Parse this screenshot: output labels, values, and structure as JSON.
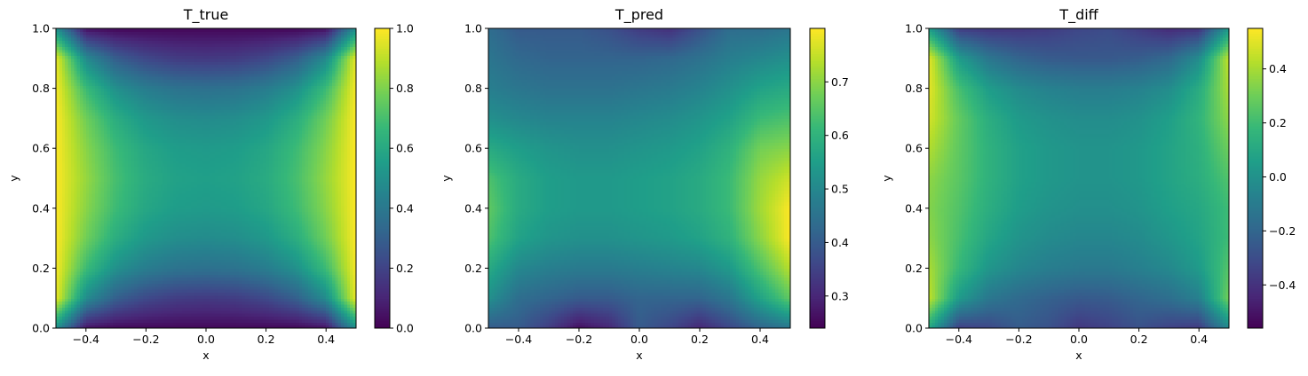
{
  "colormap": "viridis",
  "colormap_stops": [
    "#440154",
    "#482878",
    "#3e4989",
    "#31688e",
    "#26828e",
    "#1f9e89",
    "#35b779",
    "#6ece58",
    "#b5de2b",
    "#fde725"
  ],
  "chart_data": [
    {
      "type": "heatmap",
      "title": "T_true",
      "xlabel": "x",
      "ylabel": "y",
      "xlim": [
        -0.5,
        0.5
      ],
      "ylim": [
        0.0,
        1.0
      ],
      "xticks": [
        "−0.4",
        "−0.2",
        "0.0",
        "0.2",
        "0.4"
      ],
      "xtick_values": [
        -0.4,
        -0.2,
        0.0,
        0.2,
        0.4
      ],
      "yticks": [
        "0.0",
        "0.2",
        "0.4",
        "0.6",
        "0.8",
        "1.0"
      ],
      "ytick_values": [
        0.0,
        0.2,
        0.4,
        0.6,
        0.8,
        1.0
      ],
      "colorbar": {
        "range": [
          0.0,
          1.0
        ],
        "ticks": [
          "0.0",
          "0.2",
          "0.4",
          "0.6",
          "0.8",
          "1.0"
        ],
        "tick_values": [
          0.0,
          0.2,
          0.4,
          0.6,
          0.8,
          1.0
        ]
      },
      "grid_values": [
        [
          0.5,
          0.05,
          0.02,
          0.02,
          0.02,
          0.02,
          0.02,
          0.02,
          0.02,
          0.05,
          0.5
        ],
        [
          0.97,
          0.48,
          0.3,
          0.22,
          0.18,
          0.17,
          0.18,
          0.22,
          0.3,
          0.48,
          0.97
        ],
        [
          0.99,
          0.68,
          0.5,
          0.42,
          0.38,
          0.37,
          0.38,
          0.42,
          0.5,
          0.68,
          0.99
        ],
        [
          1.0,
          0.78,
          0.62,
          0.53,
          0.49,
          0.48,
          0.49,
          0.53,
          0.62,
          0.78,
          1.0
        ],
        [
          1.0,
          0.82,
          0.68,
          0.59,
          0.55,
          0.54,
          0.55,
          0.59,
          0.68,
          0.82,
          1.0
        ],
        [
          1.0,
          0.84,
          0.7,
          0.61,
          0.57,
          0.56,
          0.57,
          0.61,
          0.7,
          0.84,
          1.0
        ],
        [
          1.0,
          0.82,
          0.68,
          0.59,
          0.55,
          0.54,
          0.55,
          0.59,
          0.68,
          0.82,
          1.0
        ],
        [
          1.0,
          0.78,
          0.62,
          0.53,
          0.49,
          0.48,
          0.49,
          0.53,
          0.62,
          0.78,
          1.0
        ],
        [
          0.99,
          0.68,
          0.5,
          0.42,
          0.38,
          0.37,
          0.38,
          0.42,
          0.5,
          0.68,
          0.99
        ],
        [
          0.97,
          0.48,
          0.3,
          0.22,
          0.18,
          0.17,
          0.18,
          0.22,
          0.3,
          0.48,
          0.97
        ],
        [
          0.5,
          0.05,
          0.02,
          0.02,
          0.02,
          0.02,
          0.02,
          0.02,
          0.02,
          0.05,
          0.5
        ]
      ]
    },
    {
      "type": "heatmap",
      "title": "T_pred",
      "xlabel": "x",
      "ylabel": "y",
      "xlim": [
        -0.5,
        0.5
      ],
      "ylim": [
        0.0,
        1.0
      ],
      "xticks": [
        "−0.4",
        "−0.2",
        "0.0",
        "0.2",
        "0.4"
      ],
      "xtick_values": [
        -0.4,
        -0.2,
        0.0,
        0.2,
        0.4
      ],
      "yticks": [
        "0.0",
        "0.2",
        "0.4",
        "0.6",
        "0.8",
        "1.0"
      ],
      "ytick_values": [
        0.0,
        0.2,
        0.4,
        0.6,
        0.8,
        1.0
      ],
      "colorbar": {
        "range": [
          0.24,
          0.8
        ],
        "ticks": [
          "0.3",
          "0.4",
          "0.5",
          "0.6",
          "0.7"
        ],
        "tick_values": [
          0.3,
          0.4,
          0.5,
          0.6,
          0.7
        ]
      },
      "grid_values": [
        [
          0.4,
          0.4,
          0.34,
          0.26,
          0.3,
          0.4,
          0.36,
          0.3,
          0.36,
          0.42,
          0.46
        ],
        [
          0.52,
          0.44,
          0.42,
          0.4,
          0.4,
          0.42,
          0.42,
          0.42,
          0.46,
          0.56,
          0.66
        ],
        [
          0.58,
          0.5,
          0.48,
          0.47,
          0.47,
          0.48,
          0.49,
          0.5,
          0.54,
          0.64,
          0.74
        ],
        [
          0.64,
          0.56,
          0.53,
          0.52,
          0.52,
          0.53,
          0.54,
          0.56,
          0.6,
          0.7,
          0.8
        ],
        [
          0.66,
          0.58,
          0.55,
          0.54,
          0.54,
          0.55,
          0.56,
          0.58,
          0.62,
          0.72,
          0.8
        ],
        [
          0.64,
          0.58,
          0.55,
          0.54,
          0.54,
          0.55,
          0.56,
          0.58,
          0.62,
          0.71,
          0.76
        ],
        [
          0.58,
          0.55,
          0.53,
          0.52,
          0.52,
          0.53,
          0.54,
          0.56,
          0.6,
          0.68,
          0.7
        ],
        [
          0.52,
          0.5,
          0.49,
          0.49,
          0.49,
          0.5,
          0.51,
          0.53,
          0.56,
          0.62,
          0.64
        ],
        [
          0.48,
          0.46,
          0.45,
          0.45,
          0.45,
          0.46,
          0.47,
          0.49,
          0.52,
          0.56,
          0.58
        ],
        [
          0.46,
          0.43,
          0.42,
          0.42,
          0.42,
          0.42,
          0.43,
          0.45,
          0.48,
          0.5,
          0.52
        ],
        [
          0.44,
          0.4,
          0.4,
          0.4,
          0.38,
          0.34,
          0.32,
          0.38,
          0.44,
          0.44,
          0.46
        ]
      ]
    },
    {
      "type": "heatmap",
      "title": "T_diff",
      "xlabel": "x",
      "ylabel": "y",
      "xlim": [
        -0.5,
        0.5
      ],
      "ylim": [
        0.0,
        1.0
      ],
      "xticks": [
        "−0.4",
        "−0.2",
        "0.0",
        "0.2",
        "0.4"
      ],
      "xtick_values": [
        -0.4,
        -0.2,
        0.0,
        0.2,
        0.4
      ],
      "yticks": [
        "0.0",
        "0.2",
        "0.4",
        "0.6",
        "0.8",
        "1.0"
      ],
      "ytick_values": [
        0.0,
        0.2,
        0.4,
        0.6,
        0.8,
        1.0
      ],
      "colorbar": {
        "range": [
          -0.56,
          0.55
        ],
        "ticks": [
          "−0.4",
          "−0.2",
          "0.0",
          "0.2",
          "0.4"
        ],
        "tick_values": [
          -0.4,
          -0.2,
          0.0,
          0.2,
          0.4
        ]
      },
      "grid_values": [
        [
          0.1,
          -0.35,
          -0.32,
          -0.24,
          -0.28,
          -0.38,
          -0.34,
          -0.28,
          -0.34,
          -0.37,
          -0.04
        ],
        [
          0.45,
          0.04,
          -0.12,
          -0.18,
          -0.22,
          -0.25,
          -0.24,
          -0.2,
          -0.16,
          -0.08,
          0.31
        ],
        [
          0.41,
          0.18,
          0.02,
          -0.05,
          -0.09,
          -0.11,
          -0.11,
          -0.08,
          -0.04,
          0.04,
          0.25
        ],
        [
          0.36,
          0.22,
          0.09,
          0.01,
          -0.03,
          -0.05,
          -0.05,
          -0.03,
          0.02,
          0.08,
          0.2
        ],
        [
          0.34,
          0.24,
          0.13,
          0.05,
          0.01,
          -0.01,
          -0.01,
          0.01,
          0.06,
          0.1,
          0.2
        ],
        [
          0.36,
          0.26,
          0.15,
          0.07,
          0.03,
          0.01,
          0.01,
          0.03,
          0.08,
          0.13,
          0.24
        ],
        [
          0.42,
          0.27,
          0.15,
          0.07,
          0.03,
          0.01,
          0.01,
          0.03,
          0.08,
          0.14,
          0.3
        ],
        [
          0.48,
          0.28,
          0.13,
          0.04,
          0.0,
          -0.02,
          -0.02,
          0.0,
          0.06,
          0.16,
          0.36
        ],
        [
          0.51,
          0.22,
          0.05,
          -0.03,
          -0.07,
          -0.09,
          -0.09,
          -0.07,
          -0.02,
          0.12,
          0.41
        ],
        [
          0.51,
          0.05,
          -0.12,
          -0.2,
          -0.24,
          -0.25,
          -0.25,
          -0.23,
          -0.18,
          -0.02,
          0.45
        ],
        [
          0.06,
          -0.35,
          -0.38,
          -0.38,
          -0.36,
          -0.32,
          -0.3,
          -0.36,
          -0.42,
          -0.39,
          0.04
        ]
      ]
    }
  ]
}
